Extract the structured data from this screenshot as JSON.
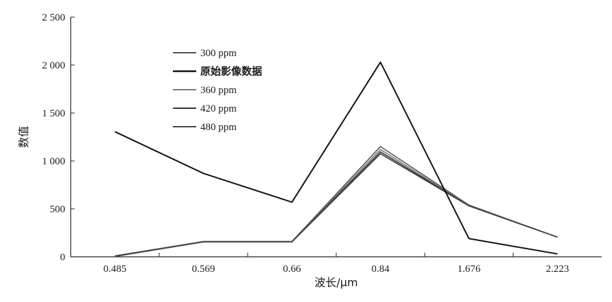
{
  "chart_data": {
    "type": "line",
    "title": "",
    "xlabel": "波长/μm",
    "ylabel": "数值",
    "categories": [
      "0.485",
      "0.569",
      "0.66",
      "0.84",
      "1.676",
      "2.223"
    ],
    "ylim": [
      0,
      2500
    ],
    "yticks": [
      {
        "value": 0,
        "label": "0"
      },
      {
        "value": 500,
        "label": "500"
      },
      {
        "value": 1000,
        "label": "1 000"
      },
      {
        "value": 1500,
        "label": "1 500"
      },
      {
        "value": 2000,
        "label": "2 000"
      },
      {
        "value": 2500,
        "label": "2 500"
      }
    ],
    "grid": false,
    "legend_position": "top-left",
    "series": [
      {
        "name": "300 ppm",
        "color": "#555555",
        "values": [
          10,
          160,
          160,
          1150,
          540,
          205
        ]
      },
      {
        "name": "原始影像数据",
        "color": "#111111",
        "bold": true,
        "values": [
          1305,
          870,
          570,
          2030,
          190,
          30
        ]
      },
      {
        "name": "360 ppm",
        "color": "#7a7a7a",
        "values": [
          8,
          158,
          158,
          1120,
          535,
          205
        ]
      },
      {
        "name": "420 ppm",
        "color": "#333333",
        "values": [
          6,
          156,
          156,
          1095,
          532,
          205
        ]
      },
      {
        "name": "480 ppm",
        "color": "#444444",
        "values": [
          4,
          155,
          155,
          1075,
          530,
          205
        ]
      }
    ]
  }
}
